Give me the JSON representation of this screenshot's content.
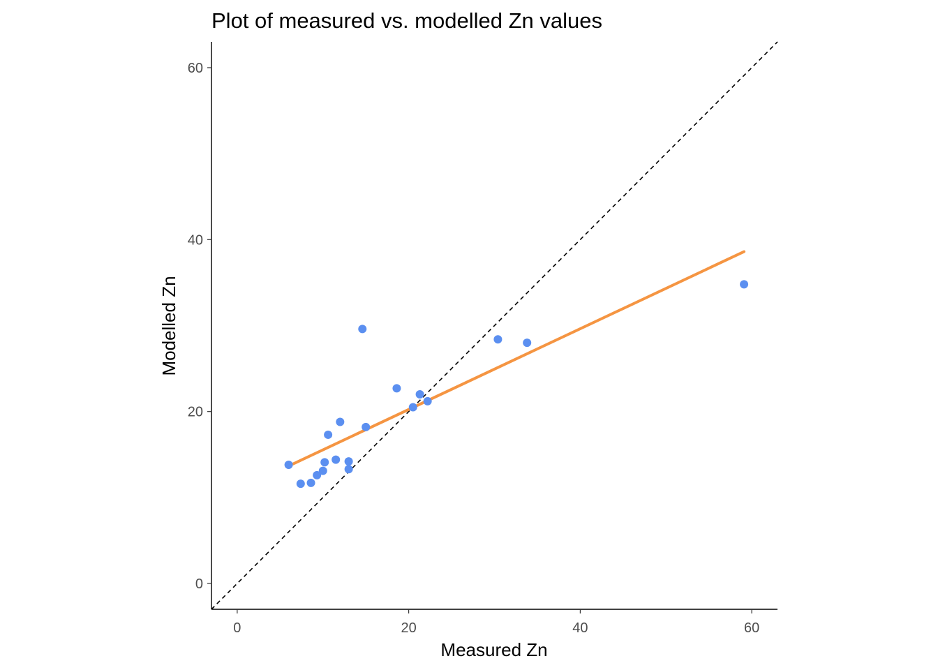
{
  "chart_data": {
    "type": "scatter",
    "title": "Plot of measured vs. modelled Zn values",
    "xlabel": "Measured Zn",
    "ylabel": "Modelled Zn",
    "xlim": [
      -3,
      63
    ],
    "ylim": [
      -3,
      63
    ],
    "xticks": [
      "0",
      "20",
      "40",
      "60"
    ],
    "yticks": [
      "0",
      "20",
      "40",
      "60"
    ],
    "grid": false,
    "points": [
      {
        "x": 6.0,
        "y": 13.8
      },
      {
        "x": 7.4,
        "y": 11.6
      },
      {
        "x": 8.6,
        "y": 11.7
      },
      {
        "x": 9.3,
        "y": 12.6
      },
      {
        "x": 10.0,
        "y": 13.1
      },
      {
        "x": 10.2,
        "y": 14.1
      },
      {
        "x": 10.6,
        "y": 17.3
      },
      {
        "x": 11.5,
        "y": 14.4
      },
      {
        "x": 12.0,
        "y": 18.8
      },
      {
        "x": 13.0,
        "y": 14.2
      },
      {
        "x": 13.0,
        "y": 13.3
      },
      {
        "x": 14.6,
        "y": 29.6
      },
      {
        "x": 15.0,
        "y": 18.2
      },
      {
        "x": 18.6,
        "y": 22.7
      },
      {
        "x": 20.5,
        "y": 20.5
      },
      {
        "x": 21.3,
        "y": 22.0
      },
      {
        "x": 22.2,
        "y": 21.2
      },
      {
        "x": 30.4,
        "y": 28.4
      },
      {
        "x": 33.8,
        "y": 28.0
      },
      {
        "x": 59.1,
        "y": 34.8
      }
    ],
    "trend_line": {
      "x": [
        6.5,
        59.1
      ],
      "y": [
        13.9,
        38.6
      ],
      "color": "#f59542"
    },
    "identity_line": {
      "style": "dashed",
      "color": "#000000"
    },
    "point_color": "#5b8ff0"
  }
}
